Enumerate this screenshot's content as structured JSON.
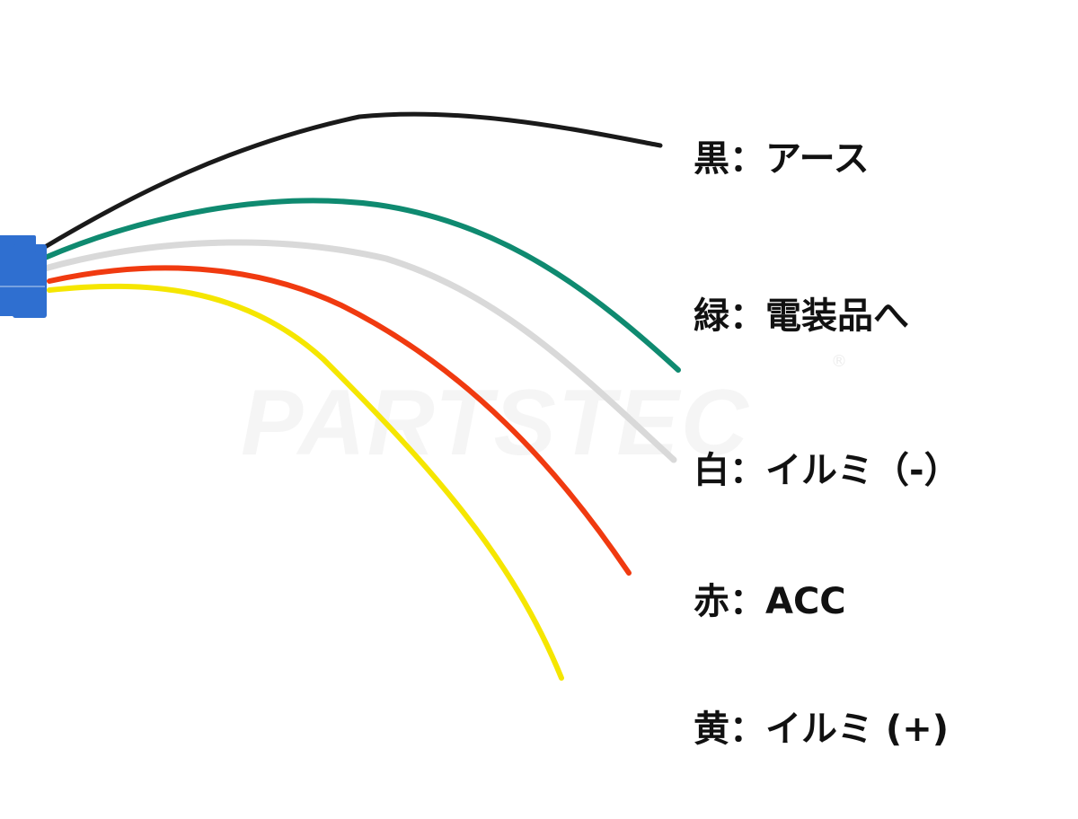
{
  "watermark": {
    "text": "PARTSTEC",
    "mark": "®"
  },
  "connector_color": "#2f6fd0",
  "wires": [
    {
      "color_name": "黒",
      "function": "アース",
      "color": "#1a1a1a",
      "label": "黒：アース"
    },
    {
      "color_name": "緑",
      "function": "電装品へ",
      "color": "#0f8a70",
      "label": "緑：電装品へ"
    },
    {
      "color_name": "白",
      "function": "イルミ（-）",
      "color": "#d9d9d9",
      "label": "白：イルミ（-）"
    },
    {
      "color_name": "赤",
      "function": "ACC",
      "color": "#f03a10",
      "label": "赤：ACC"
    },
    {
      "color_name": "黄",
      "function": "イルミ (+)",
      "color": "#f5e600",
      "label": "黄：イルミ (+)"
    }
  ]
}
